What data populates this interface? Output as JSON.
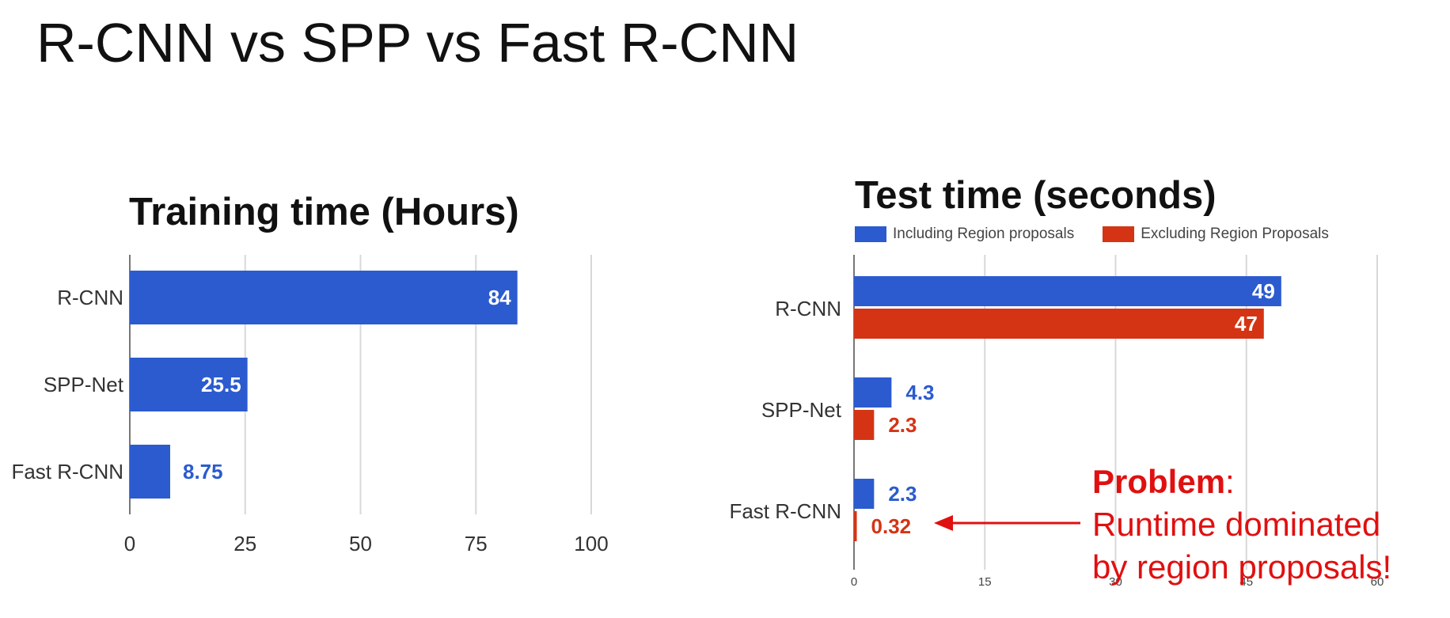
{
  "slide": {
    "title": "R-CNN vs SPP vs Fast R-CNN"
  },
  "colors": {
    "blue": "#2b5bcf",
    "red": "#d43414",
    "annotation_red": "#e01010",
    "grid": "#d8d8d8",
    "axis": "#777777"
  },
  "annotation": {
    "problem_label": "Problem",
    "problem_colon": ":",
    "line1": "Runtime dominated",
    "line2": "by region proposals!",
    "arrow": "left-arrow"
  },
  "chart_data": [
    {
      "type": "bar",
      "orientation": "horizontal",
      "title": "Training time (Hours)",
      "categories": [
        "R-CNN",
        "SPP-Net",
        "Fast R-CNN"
      ],
      "series": [
        {
          "values": [
            84,
            25.5,
            8.75
          ]
        }
      ],
      "data_labels": [
        "84",
        "25.5",
        "8.75"
      ],
      "xlim": [
        0,
        100
      ],
      "xticks": [
        "0",
        "25",
        "50",
        "75",
        "100"
      ],
      "xlabel": "",
      "ylabel": "",
      "grid": true
    },
    {
      "type": "bar",
      "orientation": "horizontal",
      "title": "Test time (seconds)",
      "categories": [
        "R-CNN",
        "SPP-Net",
        "Fast R-CNN"
      ],
      "series": [
        {
          "name": "Including Region proposals",
          "values": [
            49,
            4.3,
            2.3
          ],
          "data_labels": [
            "49",
            "4.3",
            "2.3"
          ]
        },
        {
          "name": "Excluding Region Proposals",
          "values": [
            47,
            2.3,
            0.32
          ],
          "data_labels": [
            "47",
            "2.3",
            "0.32"
          ]
        }
      ],
      "xlim": [
        0,
        60
      ],
      "xticks": [
        "0",
        "15",
        "30",
        "45",
        "60"
      ],
      "legend": "top",
      "xlabel": "",
      "ylabel": "",
      "grid": true
    }
  ]
}
